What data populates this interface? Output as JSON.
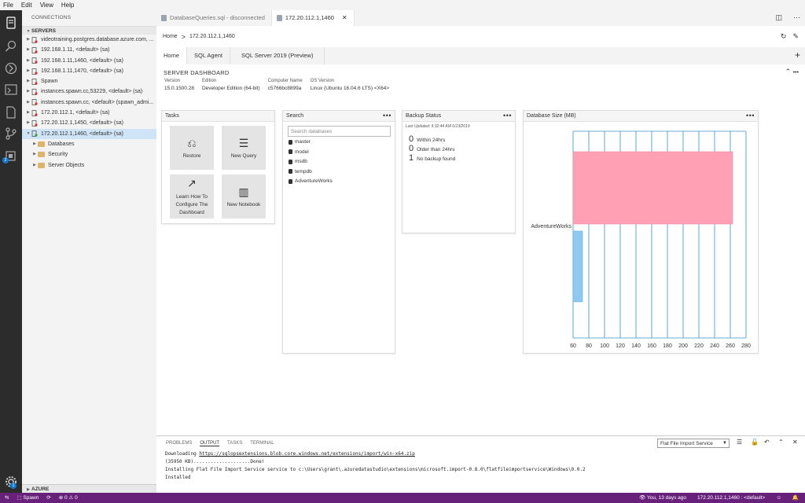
{
  "menu": [
    "File",
    "Edit",
    "View",
    "Help"
  ],
  "sidebar": {
    "title": "CONNECTIONS",
    "servers_header": "SERVERS",
    "servers": [
      {
        "label": "videotraining.postgres.database.azure.com, ...",
        "selected": false
      },
      {
        "label": "192.168.1.11, <default> (sa)",
        "selected": false
      },
      {
        "label": "192.168.1.11,1460, <default> (sa)",
        "selected": false
      },
      {
        "label": "192.168.1.11,1470, <default> (sa)",
        "selected": false
      },
      {
        "label": "Spawn",
        "selected": false
      },
      {
        "label": "instances.spawn.cc,53229, <default> (sa)",
        "selected": false
      },
      {
        "label": "instances.spawn.cc, <default> (spawn_admi...",
        "selected": false
      },
      {
        "label": "172.20.112.1, <default> (sa)",
        "selected": false
      },
      {
        "label": "172.20.112.1,1450, <default> (sa)",
        "selected": false
      },
      {
        "label": "172.20.112.1,1460, <default> (sa)",
        "selected": true
      }
    ],
    "folders": [
      "Databases",
      "Security",
      "Server Objects"
    ],
    "azure_header": "AZURE",
    "extensions_badge": "2",
    "settings_badge": "1"
  },
  "editor": {
    "tabs": [
      {
        "label": "DatabaseQueries.sql - disconnected",
        "active": false
      },
      {
        "label": "172.20.112.1,1460",
        "active": true
      }
    ],
    "breadcrumb": {
      "home": "Home",
      "sep": ">",
      "current": "172.20.112.1,1460"
    }
  },
  "dashboard": {
    "tabs": [
      "Home",
      "SQL Agent",
      "SQL Server 2019 (Preview)"
    ],
    "title": "SERVER DASHBOARD",
    "properties": [
      {
        "label": "Version",
        "value": "15.0.1500.28"
      },
      {
        "label": "Edition",
        "value": "Developer Edition (64-bit)"
      },
      {
        "label": "Computer Name",
        "value": "c5766bc8899a"
      },
      {
        "label": "OS Version",
        "value": "Linux (Ubuntu 16.04.6 LTS) <X64>"
      }
    ],
    "tasks": {
      "title": "Tasks",
      "items": [
        {
          "label": "Restore",
          "icon": "restore-icon"
        },
        {
          "label": "New Query",
          "icon": "new-query-icon"
        },
        {
          "label": "Learn How To Configure The Dashboard",
          "icon": "chart-trend-icon"
        },
        {
          "label": "New Notebook",
          "icon": "notebook-icon"
        }
      ]
    },
    "search": {
      "title": "Search",
      "placeholder": "Search databases",
      "databases": [
        "master",
        "model",
        "msdb",
        "tempdb",
        "AdventureWorks"
      ]
    },
    "backup": {
      "title": "Backup Status",
      "updated": "Last Updated: 9:32:44 AM 6/13/2019",
      "rows": [
        {
          "count": "0",
          "label": "Within 24hrs"
        },
        {
          "count": "0",
          "label": "Older than 24hrs"
        },
        {
          "count": "1",
          "label": "No backup found"
        }
      ]
    },
    "dbsize": {
      "title": "Database Size (MB)"
    },
    "more": "•••"
  },
  "chart_data": {
    "type": "bar",
    "orientation": "horizontal",
    "categories": [
      "AdventureWorks"
    ],
    "series": [
      {
        "values": [
          263
        ],
        "color": "#ffa0b4"
      },
      {
        "values": [
          72
        ],
        "color": "#8ec9f0"
      }
    ],
    "xticks": [
      "60",
      "80",
      "100",
      "120",
      "140",
      "160",
      "180",
      "200",
      "220",
      "240",
      "260",
      "280"
    ],
    "xlim": [
      60,
      280
    ],
    "grid": true
  },
  "panel": {
    "tabs": [
      "PROBLEMS",
      "OUTPUT",
      "TASKS",
      "TERMINAL"
    ],
    "active_tab": "OUTPUT",
    "select_value": "Flat File Import Service",
    "output": {
      "line1_prefix": "Downloading ",
      "line1_link": "https://sqlopsextensions.blob.core.windows.net/extensions/import/win-x64.zip",
      "line2": "(35950 KB)....................Done!",
      "line3": "Installing Flat File Import Service service to c:\\Users\\grant\\.azuredatastudio\\extensions\\microsoft.import-0.8.0\\flatfileimportservice\\Windows\\0.0.2",
      "line4": "Installed"
    }
  },
  "status": {
    "connection": "Spawn",
    "errors": "0",
    "warnings": "0",
    "blame": "You, 13 days ago",
    "server": "172.20.112.1,1460 : <default>"
  }
}
